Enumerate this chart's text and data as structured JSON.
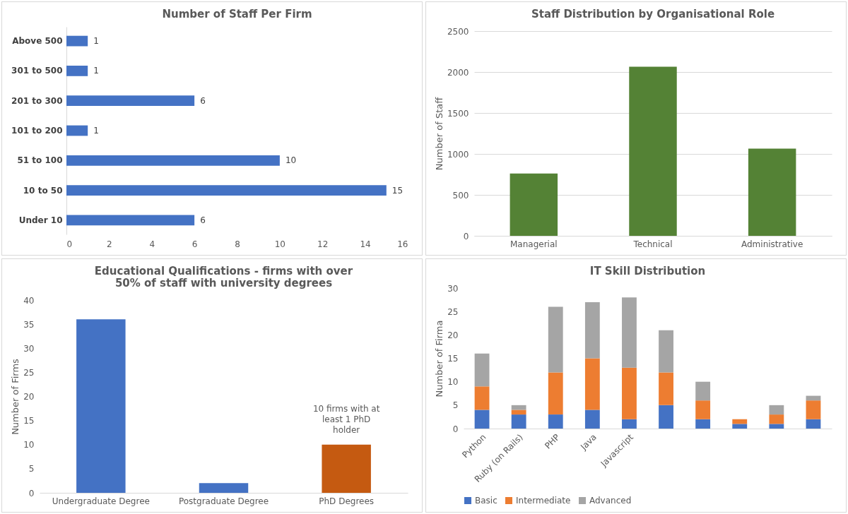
{
  "chart_data": [
    {
      "type": "bar",
      "orientation": "horizontal",
      "title": "Number of Staff Per Firm",
      "categories": [
        "Above 500",
        "301 to 500",
        "201 to 300",
        "101 to 200",
        "51 to 100",
        "10 to 50",
        "Under 10"
      ],
      "values": [
        1,
        1,
        6,
        1,
        10,
        15,
        6
      ],
      "color": "#4472c4",
      "xlim": [
        0,
        16
      ],
      "xticks": [
        0,
        2,
        4,
        6,
        8,
        10,
        12,
        14,
        16
      ],
      "data_labels": true
    },
    {
      "type": "bar",
      "title": "Staff Distribution by Organisational Role",
      "ylabel": "Number of Staff",
      "categories": [
        "Managerial",
        "Technical",
        "Administrative"
      ],
      "values": [
        760,
        2065,
        1065
      ],
      "color": "#548235",
      "ylim": [
        0,
        2500
      ],
      "yticks": [
        0,
        500,
        1000,
        1500,
        2000,
        2500
      ],
      "grid": "y"
    },
    {
      "type": "bar",
      "title": "Educational Qualifications - firms with over 50% of staff with university degrees",
      "ylabel": "Number of Firms",
      "categories": [
        "Undergraduate Degree",
        "Postgraduate Degree",
        "PhD Degrees"
      ],
      "values": [
        36,
        2,
        10
      ],
      "colors": [
        "#4472c4",
        "#4472c4",
        "#c55a11"
      ],
      "ylim": [
        0,
        40
      ],
      "yticks": [
        0,
        5,
        10,
        15,
        20,
        25,
        30,
        35,
        40
      ],
      "annotations": [
        {
          "text": "10 firms with at least 1 PhD holder",
          "x": "PhD Degrees",
          "y": 10
        }
      ]
    },
    {
      "type": "bar",
      "stacked": true,
      "title": "IT Skill Distribution",
      "ylabel": "Number of Firma",
      "categories": [
        "Python",
        "Ruby (on Rails)",
        "PHP",
        "Java",
        "Javascript",
        null,
        null,
        null,
        null,
        null
      ],
      "series": [
        {
          "name": "Basic",
          "color": "#4472c4",
          "values": [
            4,
            3,
            3,
            4,
            2,
            5,
            2,
            1,
            1,
            2
          ]
        },
        {
          "name": "Intermediate",
          "color": "#ed7d31",
          "values": [
            5,
            1,
            9,
            11,
            11,
            7,
            4,
            1,
            2,
            4
          ]
        },
        {
          "name": "Advanced",
          "color": "#a5a5a5",
          "values": [
            7,
            1,
            14,
            12,
            15,
            9,
            4,
            0,
            2,
            1
          ]
        }
      ],
      "ylim": [
        0,
        30
      ],
      "yticks": [
        0,
        5,
        10,
        15,
        20,
        25,
        30
      ],
      "legend": "bottom"
    }
  ]
}
